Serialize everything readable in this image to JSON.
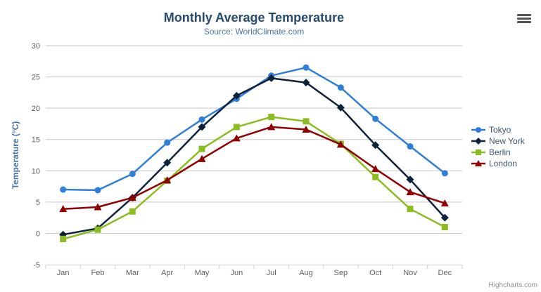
{
  "chart_data": {
    "type": "line",
    "title": "Monthly Average Temperature",
    "subtitle": "Source: WorldClimate.com",
    "categories": [
      "Jan",
      "Feb",
      "Mar",
      "Apr",
      "May",
      "Jun",
      "Jul",
      "Aug",
      "Sep",
      "Oct",
      "Nov",
      "Dec"
    ],
    "series": [
      {
        "name": "Tokyo",
        "color": "#2f7ed8",
        "marker": "circle",
        "values": [
          7.0,
          6.9,
          9.5,
          14.5,
          18.2,
          21.5,
          25.2,
          26.5,
          23.3,
          18.3,
          13.9,
          9.6
        ]
      },
      {
        "name": "New York",
        "color": "#0d233a",
        "marker": "diamond",
        "values": [
          -0.2,
          0.8,
          5.7,
          11.3,
          17.0,
          22.0,
          24.8,
          24.1,
          20.1,
          14.1,
          8.6,
          2.5
        ]
      },
      {
        "name": "Berlin",
        "color": "#8bbc21",
        "marker": "square",
        "values": [
          -0.9,
          0.6,
          3.5,
          8.4,
          13.5,
          17.0,
          18.6,
          17.9,
          14.3,
          9.0,
          3.9,
          1.0
        ]
      },
      {
        "name": "London",
        "color": "#910000",
        "marker": "triangle",
        "values": [
          3.9,
          4.2,
          5.7,
          8.5,
          11.9,
          15.2,
          17.0,
          16.6,
          14.2,
          10.3,
          6.6,
          4.8
        ]
      }
    ],
    "xlabel": "",
    "ylabel": "Temperature (°C)",
    "ylim": [
      -5,
      30
    ],
    "yticks": [
      -5,
      0,
      5,
      10,
      15,
      20,
      25,
      30
    ],
    "grid": true,
    "legend_position": "right"
  },
  "colors": {
    "title": "#274b6d",
    "subtitle": "#4d759e",
    "axis_title": "#4572a7",
    "tick_label": "#606060",
    "grid_line": "#c9c9c9",
    "axis_line": "#c0d0e0",
    "legend_text": "#3e576f",
    "credits": "#909090",
    "export_icon": "#545454"
  },
  "export_menu": {
    "icon": "hamburger-icon"
  },
  "credits": {
    "label": "Highcharts.com"
  }
}
